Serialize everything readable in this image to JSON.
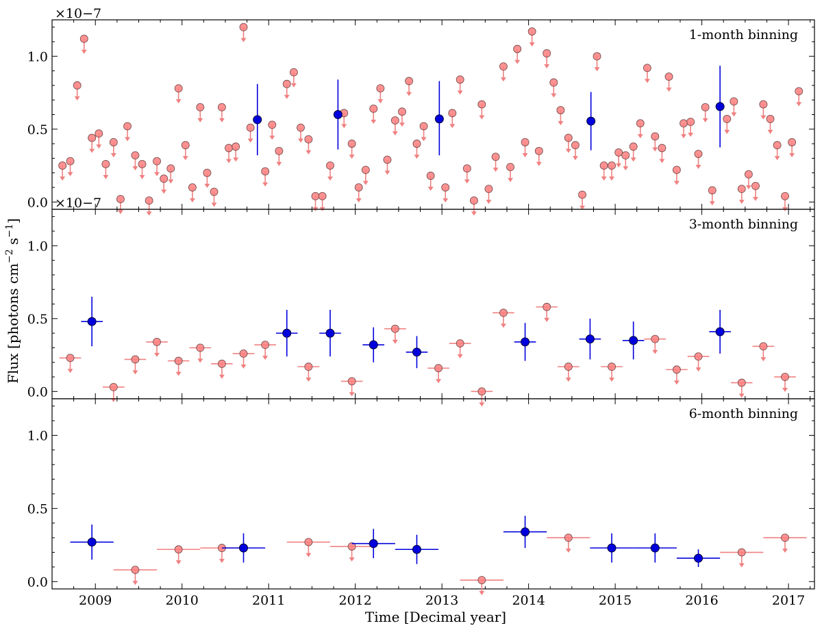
{
  "colors": {
    "detection": "#0000dd",
    "upper_limit_fill": "#ff7f7f",
    "upper_limit_line": "#f08080",
    "axis": "#000000"
  },
  "chart_data": {
    "type": "scatter",
    "shared": {
      "xlabel": "Time [Decimal year]",
      "ylabel_main": "Flux [photons cm",
      "ylabel_sup1": "−2",
      "ylabel_mid": " s",
      "ylabel_sup2": "−1",
      "ylabel_end": "]",
      "xlim": [
        2008.5,
        2017.3
      ],
      "xticks": [
        2009,
        2010,
        2011,
        2012,
        2013,
        2014,
        2015,
        2016,
        2017
      ],
      "xtick_labels": [
        "2009",
        "2010",
        "2011",
        "2012",
        "2013",
        "2014",
        "2015",
        "2016",
        "2017"
      ]
    },
    "panels": [
      {
        "label": "1-month binning",
        "offset_text": "×10−7",
        "ylim": [
          -0.05,
          1.25
        ],
        "yticks": [
          0.0,
          0.5,
          1.0
        ],
        "ytick_labels": [
          "0.0",
          "0.5",
          "1.0"
        ],
        "detections": [
          {
            "x": 2010.87,
            "y": 0.565,
            "yerr_up": 0.245,
            "yerr_down": 0.245
          },
          {
            "x": 2011.8,
            "y": 0.6,
            "yerr_up": 0.24,
            "yerr_down": 0.24
          },
          {
            "x": 2012.97,
            "y": 0.57,
            "yerr_up": 0.26,
            "yerr_down": 0.25
          },
          {
            "x": 2014.72,
            "y": 0.555,
            "yerr_up": 0.2,
            "yerr_down": 0.2
          },
          {
            "x": 2016.21,
            "y": 0.655,
            "yerr_up": 0.28,
            "yerr_down": 0.28
          }
        ],
        "upper_limits": [
          {
            "x": 2008.62,
            "y": 0.25
          },
          {
            "x": 2008.71,
            "y": 0.28
          },
          {
            "x": 2008.79,
            "y": 0.8
          },
          {
            "x": 2008.87,
            "y": 1.12
          },
          {
            "x": 2008.96,
            "y": 0.44
          },
          {
            "x": 2009.04,
            "y": 0.47
          },
          {
            "x": 2009.12,
            "y": 0.26
          },
          {
            "x": 2009.21,
            "y": 0.41
          },
          {
            "x": 2009.29,
            "y": 0.02
          },
          {
            "x": 2009.37,
            "y": 0.52
          },
          {
            "x": 2009.46,
            "y": 0.32
          },
          {
            "x": 2009.54,
            "y": 0.26
          },
          {
            "x": 2009.62,
            "y": 0.01
          },
          {
            "x": 2009.71,
            "y": 0.28
          },
          {
            "x": 2009.79,
            "y": 0.16
          },
          {
            "x": 2009.87,
            "y": 0.23
          },
          {
            "x": 2009.96,
            "y": 0.78
          },
          {
            "x": 2010.04,
            "y": 0.39
          },
          {
            "x": 2010.12,
            "y": 0.1
          },
          {
            "x": 2010.21,
            "y": 0.65
          },
          {
            "x": 2010.29,
            "y": 0.2
          },
          {
            "x": 2010.37,
            "y": 0.07
          },
          {
            "x": 2010.46,
            "y": 0.65
          },
          {
            "x": 2010.54,
            "y": 0.37
          },
          {
            "x": 2010.62,
            "y": 0.38
          },
          {
            "x": 2010.71,
            "y": 1.2
          },
          {
            "x": 2010.79,
            "y": 0.51
          },
          {
            "x": 2010.96,
            "y": 0.21
          },
          {
            "x": 2011.04,
            "y": 0.53
          },
          {
            "x": 2011.12,
            "y": 0.35
          },
          {
            "x": 2011.21,
            "y": 0.81
          },
          {
            "x": 2011.29,
            "y": 0.89
          },
          {
            "x": 2011.37,
            "y": 0.51
          },
          {
            "x": 2011.46,
            "y": 0.43
          },
          {
            "x": 2011.54,
            "y": 0.04
          },
          {
            "x": 2011.62,
            "y": 0.04
          },
          {
            "x": 2011.71,
            "y": 0.25
          },
          {
            "x": 2011.87,
            "y": 0.61
          },
          {
            "x": 2011.96,
            "y": 0.4
          },
          {
            "x": 2012.04,
            "y": 0.1
          },
          {
            "x": 2012.12,
            "y": 0.22
          },
          {
            "x": 2012.21,
            "y": 0.64
          },
          {
            "x": 2012.29,
            "y": 0.78
          },
          {
            "x": 2012.37,
            "y": 0.29
          },
          {
            "x": 2012.46,
            "y": 0.56
          },
          {
            "x": 2012.54,
            "y": 0.62
          },
          {
            "x": 2012.62,
            "y": 0.83
          },
          {
            "x": 2012.71,
            "y": 0.4
          },
          {
            "x": 2012.79,
            "y": 0.52
          },
          {
            "x": 2012.87,
            "y": 0.18
          },
          {
            "x": 2013.04,
            "y": 0.1
          },
          {
            "x": 2013.12,
            "y": 0.61
          },
          {
            "x": 2013.21,
            "y": 0.84
          },
          {
            "x": 2013.29,
            "y": 0.23
          },
          {
            "x": 2013.37,
            "y": 0.01
          },
          {
            "x": 2013.46,
            "y": 0.67
          },
          {
            "x": 2013.54,
            "y": 0.09
          },
          {
            "x": 2013.62,
            "y": 0.31
          },
          {
            "x": 2013.71,
            "y": 0.93
          },
          {
            "x": 2013.79,
            "y": 0.24
          },
          {
            "x": 2013.87,
            "y": 1.05
          },
          {
            "x": 2013.96,
            "y": 0.41
          },
          {
            "x": 2014.04,
            "y": 1.17
          },
          {
            "x": 2014.12,
            "y": 0.35
          },
          {
            "x": 2014.21,
            "y": 1.02
          },
          {
            "x": 2014.29,
            "y": 0.82
          },
          {
            "x": 2014.37,
            "y": 0.63
          },
          {
            "x": 2014.46,
            "y": 0.44
          },
          {
            "x": 2014.54,
            "y": 0.39
          },
          {
            "x": 2014.62,
            "y": 0.05
          },
          {
            "x": 2014.79,
            "y": 1.0
          },
          {
            "x": 2014.87,
            "y": 0.25
          },
          {
            "x": 2014.96,
            "y": 0.25
          },
          {
            "x": 2015.04,
            "y": 0.34
          },
          {
            "x": 2015.12,
            "y": 0.32
          },
          {
            "x": 2015.21,
            "y": 0.38
          },
          {
            "x": 2015.29,
            "y": 0.54
          },
          {
            "x": 2015.37,
            "y": 0.92
          },
          {
            "x": 2015.46,
            "y": 0.45
          },
          {
            "x": 2015.54,
            "y": 0.37
          },
          {
            "x": 2015.62,
            "y": 0.86
          },
          {
            "x": 2015.71,
            "y": 0.22
          },
          {
            "x": 2015.79,
            "y": 0.54
          },
          {
            "x": 2015.87,
            "y": 0.55
          },
          {
            "x": 2015.96,
            "y": 0.33
          },
          {
            "x": 2016.04,
            "y": 0.65
          },
          {
            "x": 2016.12,
            "y": 0.08
          },
          {
            "x": 2016.29,
            "y": 0.57
          },
          {
            "x": 2016.37,
            "y": 0.69
          },
          {
            "x": 2016.46,
            "y": 0.09
          },
          {
            "x": 2016.54,
            "y": 0.19
          },
          {
            "x": 2016.62,
            "y": 0.11
          },
          {
            "x": 2016.71,
            "y": 0.67
          },
          {
            "x": 2016.79,
            "y": 0.57
          },
          {
            "x": 2016.87,
            "y": 0.39
          },
          {
            "x": 2016.96,
            "y": 0.04
          },
          {
            "x": 2017.04,
            "y": 0.41
          },
          {
            "x": 2017.12,
            "y": 0.76
          }
        ]
      },
      {
        "label": "3-month binning",
        "offset_text": "×10−7",
        "ylim": [
          -0.05,
          1.25
        ],
        "yticks": [
          0.0,
          0.5,
          1.0
        ],
        "ytick_labels": [
          "0.0",
          "0.5",
          "1.0"
        ],
        "xerr": 0.125,
        "detections": [
          {
            "x": 2008.96,
            "y": 0.48,
            "yerr_up": 0.17,
            "yerr_down": 0.17
          },
          {
            "x": 2011.21,
            "y": 0.4,
            "yerr_up": 0.16,
            "yerr_down": 0.16
          },
          {
            "x": 2011.71,
            "y": 0.4,
            "yerr_up": 0.16,
            "yerr_down": 0.16
          },
          {
            "x": 2012.21,
            "y": 0.32,
            "yerr_up": 0.12,
            "yerr_down": 0.12
          },
          {
            "x": 2012.71,
            "y": 0.27,
            "yerr_up": 0.11,
            "yerr_down": 0.11
          },
          {
            "x": 2013.96,
            "y": 0.34,
            "yerr_up": 0.13,
            "yerr_down": 0.13
          },
          {
            "x": 2014.71,
            "y": 0.36,
            "yerr_up": 0.14,
            "yerr_down": 0.14
          },
          {
            "x": 2015.21,
            "y": 0.35,
            "yerr_up": 0.13,
            "yerr_down": 0.13
          },
          {
            "x": 2016.21,
            "y": 0.41,
            "yerr_up": 0.15,
            "yerr_down": 0.15
          }
        ],
        "upper_limits": [
          {
            "x": 2008.71,
            "y": 0.23
          },
          {
            "x": 2009.21,
            "y": 0.03
          },
          {
            "x": 2009.46,
            "y": 0.22
          },
          {
            "x": 2009.71,
            "y": 0.34
          },
          {
            "x": 2009.96,
            "y": 0.21
          },
          {
            "x": 2010.21,
            "y": 0.3
          },
          {
            "x": 2010.46,
            "y": 0.19
          },
          {
            "x": 2010.71,
            "y": 0.26
          },
          {
            "x": 2010.96,
            "y": 0.32
          },
          {
            "x": 2011.46,
            "y": 0.17
          },
          {
            "x": 2011.96,
            "y": 0.07
          },
          {
            "x": 2012.46,
            "y": 0.43
          },
          {
            "x": 2012.96,
            "y": 0.16
          },
          {
            "x": 2013.21,
            "y": 0.33
          },
          {
            "x": 2013.46,
            "y": 0.0
          },
          {
            "x": 2013.71,
            "y": 0.54
          },
          {
            "x": 2014.21,
            "y": 0.58
          },
          {
            "x": 2014.46,
            "y": 0.17
          },
          {
            "x": 2014.96,
            "y": 0.17
          },
          {
            "x": 2015.46,
            "y": 0.36
          },
          {
            "x": 2015.71,
            "y": 0.15
          },
          {
            "x": 2015.96,
            "y": 0.24
          },
          {
            "x": 2016.46,
            "y": 0.06
          },
          {
            "x": 2016.71,
            "y": 0.31
          },
          {
            "x": 2016.96,
            "y": 0.1
          }
        ]
      },
      {
        "label": "6-month binning",
        "offset_text": "",
        "ylim": [
          -0.05,
          1.25
        ],
        "yticks": [
          0.0,
          0.5,
          1.0
        ],
        "ytick_labels": [
          "0.0",
          "0.5",
          "1.0"
        ],
        "xerr": 0.25,
        "detections": [
          {
            "x": 2008.96,
            "y": 0.27,
            "yerr_up": 0.12,
            "yerr_down": 0.12
          },
          {
            "x": 2010.71,
            "y": 0.23,
            "yerr_up": 0.1,
            "yerr_down": 0.1
          },
          {
            "x": 2012.21,
            "y": 0.26,
            "yerr_up": 0.1,
            "yerr_down": 0.1
          },
          {
            "x": 2012.71,
            "y": 0.22,
            "yerr_up": 0.1,
            "yerr_down": 0.1
          },
          {
            "x": 2013.96,
            "y": 0.34,
            "yerr_up": 0.11,
            "yerr_down": 0.11
          },
          {
            "x": 2014.96,
            "y": 0.23,
            "yerr_up": 0.1,
            "yerr_down": 0.1
          },
          {
            "x": 2015.46,
            "y": 0.23,
            "yerr_up": 0.1,
            "yerr_down": 0.1
          },
          {
            "x": 2015.96,
            "y": 0.16,
            "yerr_up": 0.06,
            "yerr_down": 0.06
          }
        ],
        "upper_limits": [
          {
            "x": 2009.46,
            "y": 0.08
          },
          {
            "x": 2009.96,
            "y": 0.22
          },
          {
            "x": 2010.46,
            "y": 0.23
          },
          {
            "x": 2011.46,
            "y": 0.27
          },
          {
            "x": 2011.96,
            "y": 0.24
          },
          {
            "x": 2013.46,
            "y": 0.01
          },
          {
            "x": 2014.46,
            "y": 0.3
          },
          {
            "x": 2016.46,
            "y": 0.2
          },
          {
            "x": 2016.96,
            "y": 0.3
          }
        ]
      }
    ]
  }
}
